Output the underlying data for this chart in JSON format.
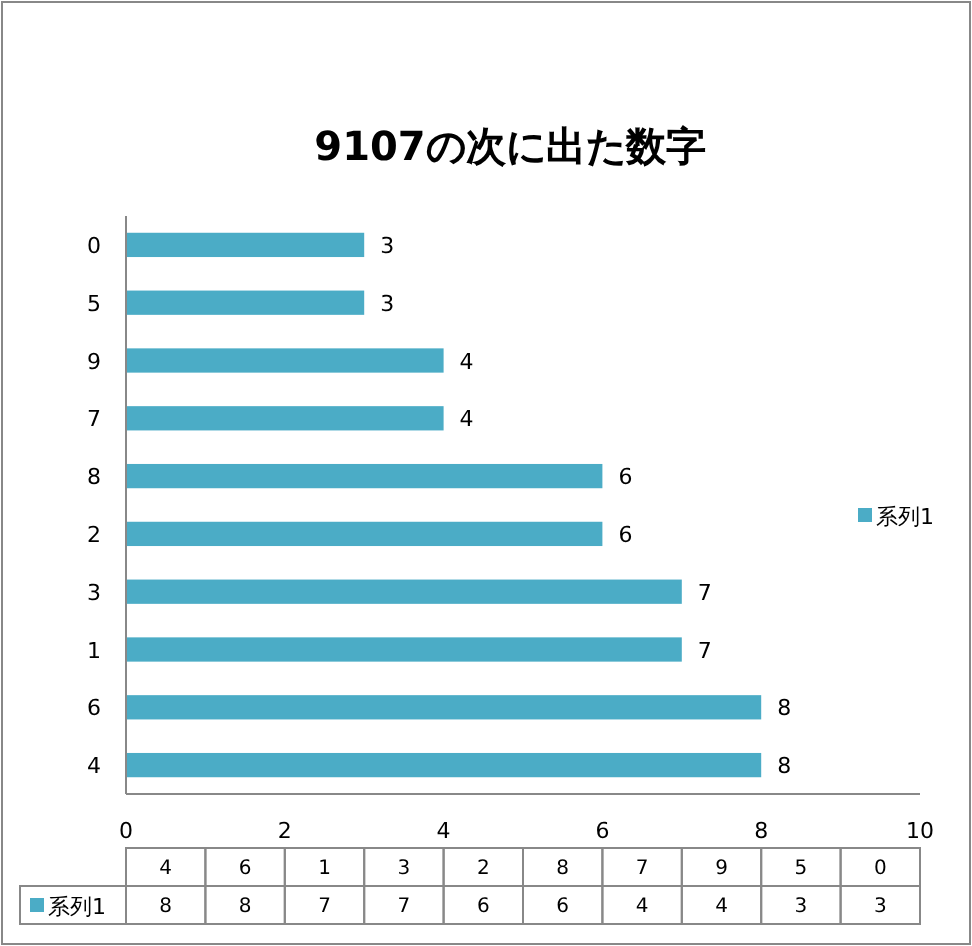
{
  "chart_data": {
    "type": "bar",
    "orientation": "horizontal",
    "title": "9107の次に出た数字",
    "categories": [
      "0",
      "5",
      "9",
      "7",
      "8",
      "2",
      "3",
      "1",
      "6",
      "4"
    ],
    "series": [
      {
        "name": "系列1",
        "color": "#4bacc6",
        "values": [
          3,
          3,
          4,
          4,
          6,
          6,
          7,
          7,
          8,
          8
        ]
      }
    ],
    "xlim": [
      0,
      10
    ],
    "xticks": [
      0,
      2,
      4,
      6,
      8,
      10
    ],
    "data_labels": true,
    "legend": "right"
  }
}
